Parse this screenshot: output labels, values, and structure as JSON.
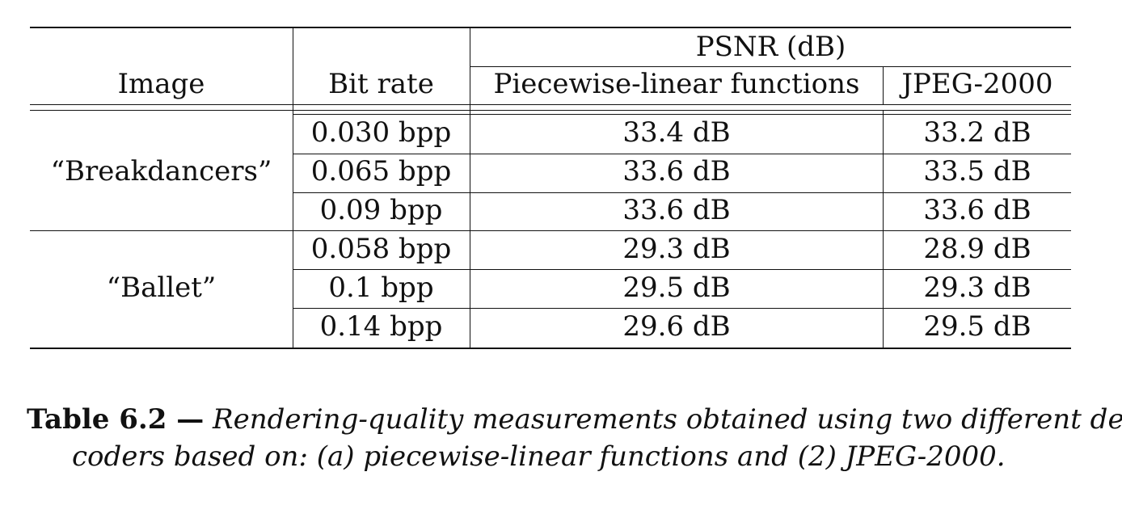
{
  "header": {
    "image_label": "Image",
    "bitrate_label": "Bit rate",
    "psnr_label": "PSNR (dB)",
    "piecewise_label": "Piecewise-linear functions",
    "jpeg_label": "JPEG-2000"
  },
  "groups": [
    {
      "image": "“Breakdancers”",
      "rows": [
        {
          "bitrate": "0.030 bpp",
          "piecewise": "33.4 dB",
          "jpeg": "33.2 dB"
        },
        {
          "bitrate": "0.065 bpp",
          "piecewise": "33.6 dB",
          "jpeg": "33.5 dB"
        },
        {
          "bitrate": "0.09 bpp",
          "piecewise": "33.6 dB",
          "jpeg": "33.6 dB"
        }
      ]
    },
    {
      "image": "“Ballet”",
      "rows": [
        {
          "bitrate": "0.058 bpp",
          "piecewise": "29.3 dB",
          "jpeg": "28.9 dB"
        },
        {
          "bitrate": "0.1 bpp",
          "piecewise": "29.5 dB",
          "jpeg": "29.3 dB"
        },
        {
          "bitrate": "0.14 bpp",
          "piecewise": "29.6 dB",
          "jpeg": "29.5 dB"
        }
      ]
    }
  ],
  "caption": {
    "label": "Table 6.2 —",
    "text_line1": "Rendering-quality measurements obtained using two different depth",
    "text_line2": "coders based on: (a) piecewise-linear functions and (2) JPEG-2000."
  }
}
